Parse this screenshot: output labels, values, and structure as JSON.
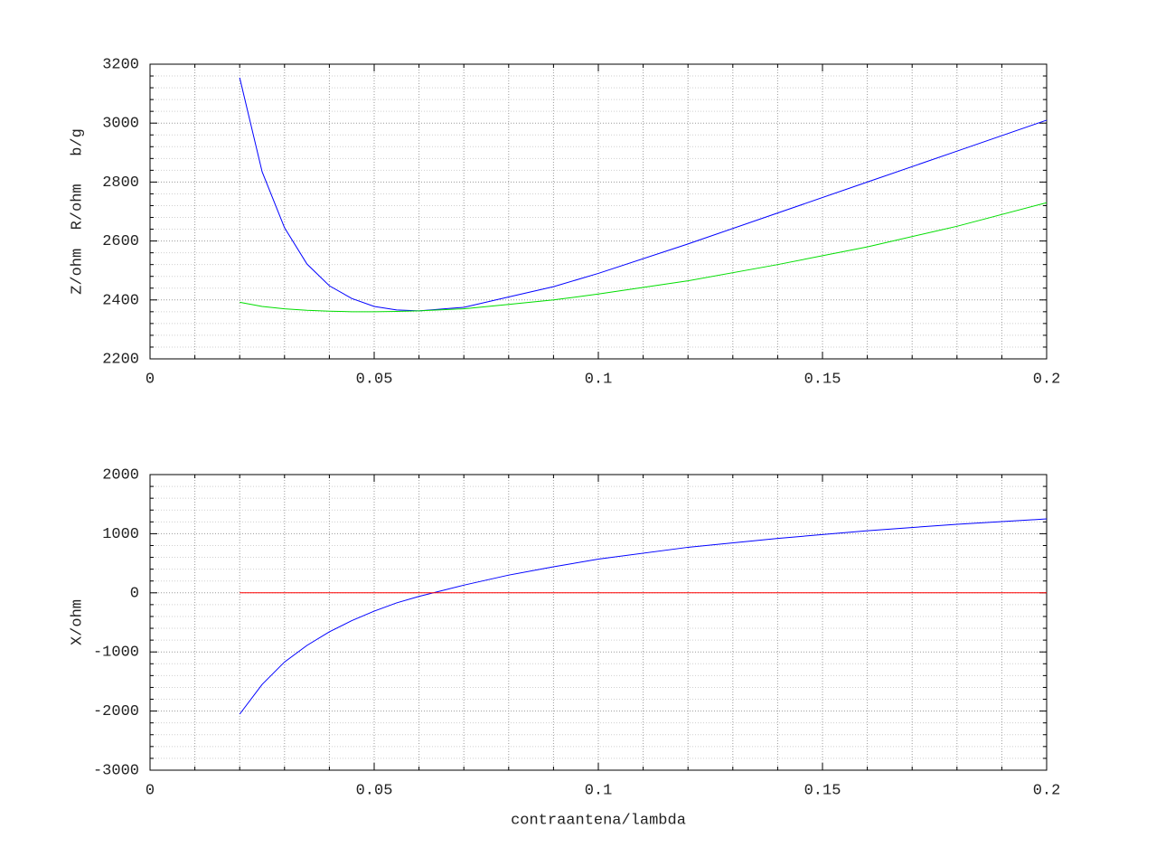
{
  "chart_data": [
    {
      "type": "line",
      "ylabel": "Z/ohm  R/ohm   b/g",
      "x": [
        0.02,
        0.025,
        0.03,
        0.035,
        0.04,
        0.045,
        0.05,
        0.055,
        0.06,
        0.07,
        0.08,
        0.09,
        0.1,
        0.12,
        0.14,
        0.16,
        0.18,
        0.2
      ],
      "series": [
        {
          "color": "#0000ff",
          "values": [
            3154,
            2835,
            2645,
            2522,
            2448,
            2405,
            2378,
            2366,
            2363,
            2375,
            2410,
            2445,
            2490,
            2590,
            2695,
            2800,
            2905,
            3010
          ]
        },
        {
          "color": "#00dd00",
          "values": [
            2392,
            2378,
            2370,
            2365,
            2362,
            2360,
            2360,
            2361,
            2363,
            2370,
            2385,
            2400,
            2420,
            2465,
            2520,
            2580,
            2650,
            2730
          ]
        }
      ],
      "xlim": [
        0,
        0.2
      ],
      "xticks": [
        0,
        0.05,
        0.1,
        0.15,
        0.2
      ],
      "minor_xticks": [
        0.01,
        0.02,
        0.03,
        0.04,
        0.06,
        0.07,
        0.08,
        0.09,
        0.11,
        0.12,
        0.13,
        0.14,
        0.16,
        0.17,
        0.18,
        0.19
      ],
      "ylim": [
        2200,
        3200
      ],
      "yticks": [
        2200,
        2400,
        2600,
        2800,
        3000,
        3200
      ],
      "minor_yticks": [
        2240,
        2280,
        2320,
        2360,
        2440,
        2480,
        2520,
        2560,
        2640,
        2680,
        2720,
        2760,
        2840,
        2880,
        2920,
        2960,
        3040,
        3080,
        3120,
        3160
      ],
      "grid": true
    },
    {
      "type": "line",
      "ylabel": "X/ohm",
      "xlabel": "contraantena/lambda",
      "x": [
        0.02,
        0.025,
        0.03,
        0.035,
        0.04,
        0.045,
        0.05,
        0.055,
        0.06,
        0.07,
        0.08,
        0.09,
        0.1,
        0.12,
        0.14,
        0.16,
        0.18,
        0.2
      ],
      "series": [
        {
          "color": "#0000ff",
          "values": [
            -2052,
            -1550,
            -1170,
            -890,
            -660,
            -470,
            -310,
            -170,
            -60,
            130,
            300,
            440,
            570,
            770,
            920,
            1050,
            1160,
            1250
          ]
        },
        {
          "color": "#ff0000",
          "values": [
            0,
            0,
            0,
            0,
            0,
            0,
            0,
            0,
            0,
            0,
            0,
            0,
            0,
            0,
            0,
            0,
            0,
            0
          ]
        }
      ],
      "xlim": [
        0,
        0.2
      ],
      "xticks": [
        0,
        0.05,
        0.1,
        0.15,
        0.2
      ],
      "minor_xticks": [
        0.01,
        0.02,
        0.03,
        0.04,
        0.06,
        0.07,
        0.08,
        0.09,
        0.11,
        0.12,
        0.13,
        0.14,
        0.16,
        0.17,
        0.18,
        0.19
      ],
      "ylim": [
        -3000,
        2000
      ],
      "yticks": [
        -3000,
        -2000,
        -1000,
        0,
        1000,
        2000
      ],
      "minor_yticks": [
        -2800,
        -2600,
        -2400,
        -2200,
        -1800,
        -1600,
        -1400,
        -1200,
        -800,
        -600,
        -400,
        -200,
        200,
        400,
        600,
        800,
        1200,
        1400,
        1600,
        1800
      ],
      "grid": true
    }
  ]
}
